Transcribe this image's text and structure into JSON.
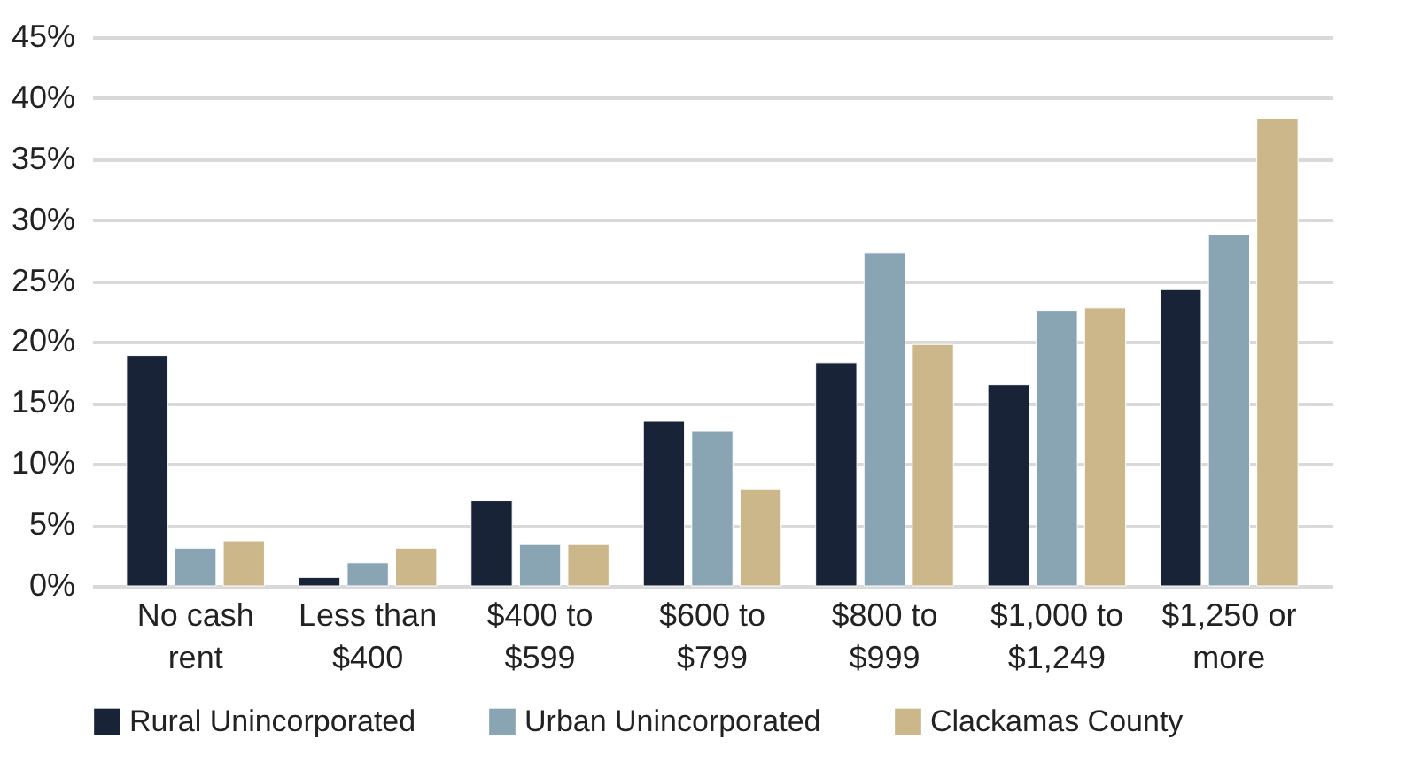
{
  "chart_data": {
    "type": "bar",
    "categories": [
      "No cash rent",
      "Less than $400",
      "$400 to $599",
      "$600 to $799",
      "$800 to $999",
      "$1,000 to $1,249",
      "$1,250 or more"
    ],
    "series": [
      {
        "name": "Rural Unincorporated",
        "color": "#182338",
        "values": [
          18.9,
          0.7,
          7.0,
          13.5,
          18.3,
          16.5,
          24.3
        ]
      },
      {
        "name": "Urban Unincorporated",
        "color": "#89a4b3",
        "values": [
          3.1,
          1.9,
          3.4,
          12.7,
          27.3,
          22.6,
          28.8
        ]
      },
      {
        "name": "Clackamas County",
        "color": "#cbb789",
        "values": [
          3.7,
          3.1,
          3.4,
          7.9,
          19.8,
          22.8,
          38.3
        ]
      }
    ],
    "ylim": [
      0,
      45
    ],
    "yticks": [
      {
        "value": 0,
        "label": "0%"
      },
      {
        "value": 5,
        "label": "5%"
      },
      {
        "value": 10,
        "label": "10%"
      },
      {
        "value": 15,
        "label": "15%"
      },
      {
        "value": 20,
        "label": "20%"
      },
      {
        "value": 25,
        "label": "25%"
      },
      {
        "value": 30,
        "label": "30%"
      },
      {
        "value": 35,
        "label": "35%"
      },
      {
        "value": 40,
        "label": "40%"
      },
      {
        "value": 45,
        "label": "45%"
      }
    ],
    "grid": "y",
    "legend": "bottom"
  }
}
